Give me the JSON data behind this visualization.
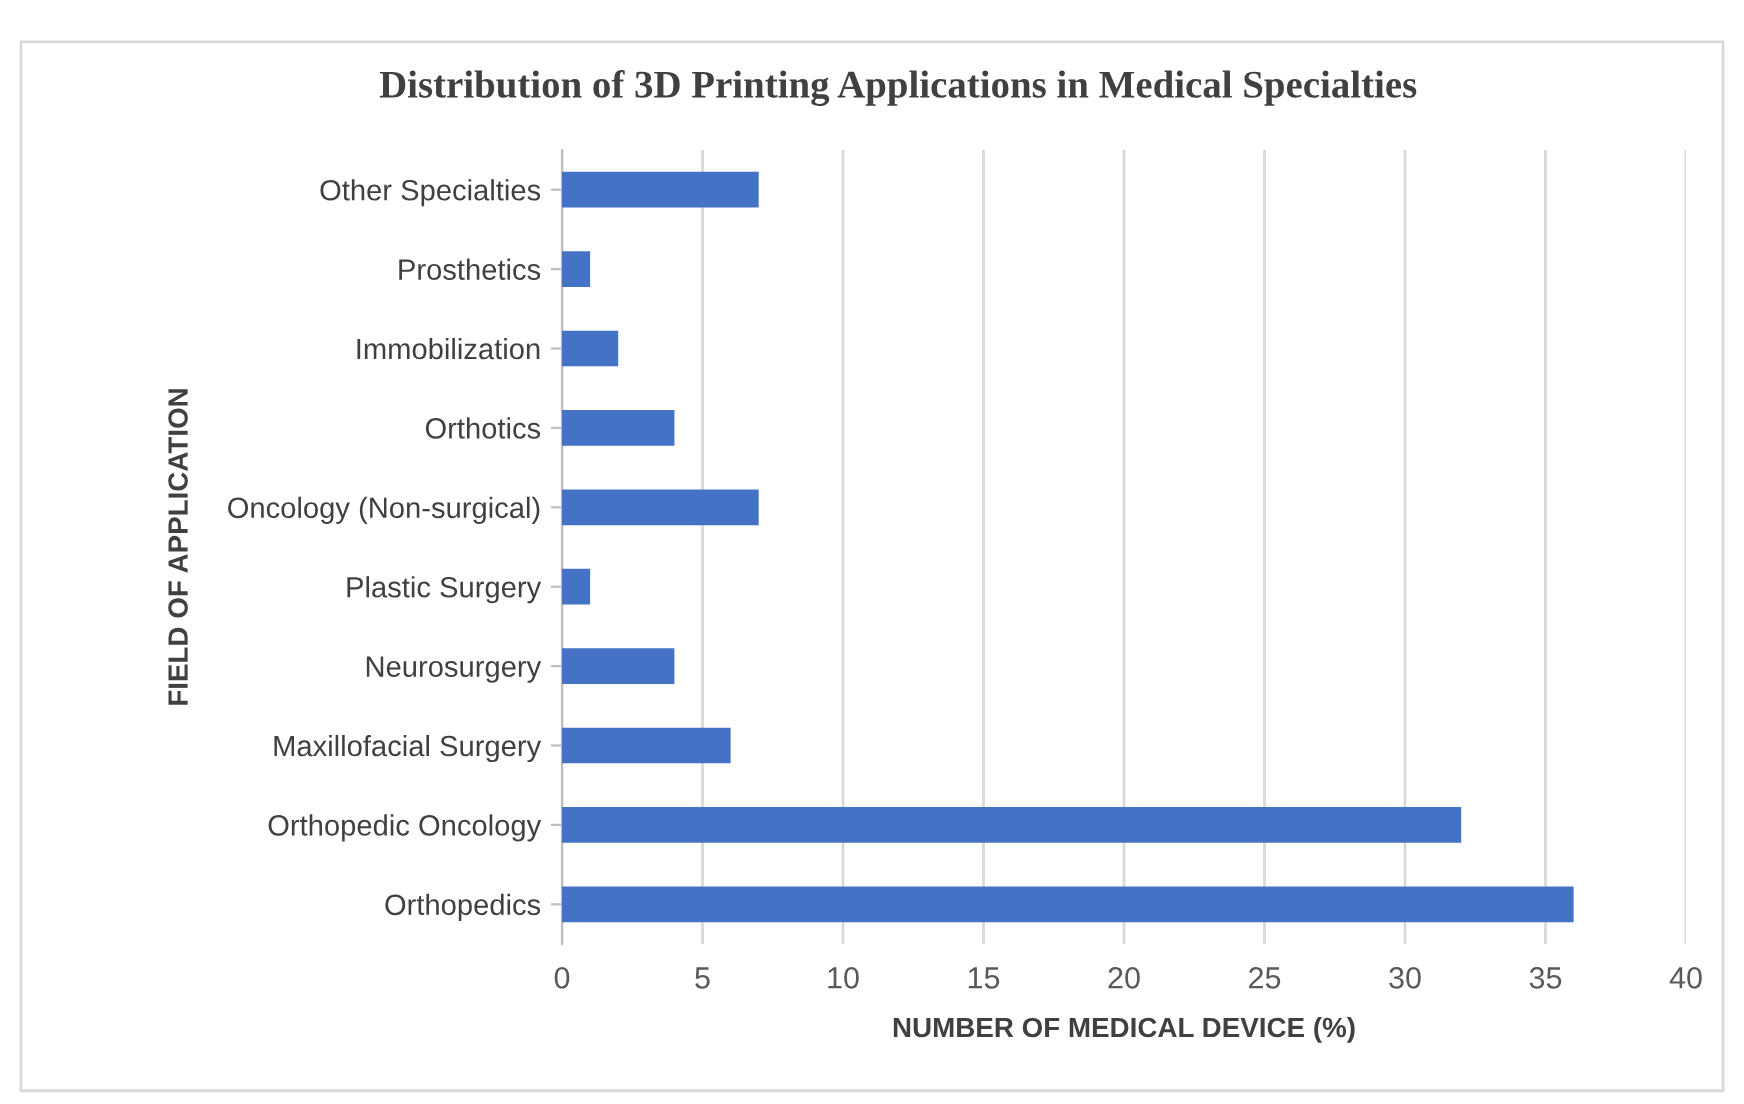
{
  "chart_data": {
    "type": "bar",
    "orientation": "horizontal",
    "title": "Distribution of 3D Printing Applications in Medical Specialties",
    "xlabel": "NUMBER OF MEDICAL DEVICE (%)",
    "ylabel": "FIELD OF APPLICATION",
    "categories": [
      "Other Specialties",
      "Prosthetics",
      "Immobilization",
      "Orthotics",
      "Oncology (Non-surgical)",
      "Plastic Surgery",
      "Neurosurgery",
      "Maxillofacial Surgery",
      "Orthopedic Oncology",
      "Orthopedics"
    ],
    "values": [
      7,
      1,
      2,
      4,
      7,
      1,
      4,
      6,
      32,
      36
    ],
    "color": "#4472c4",
    "xlim": [
      0,
      40
    ],
    "xticks": [
      0,
      5,
      10,
      15,
      20,
      25,
      30,
      35,
      40
    ],
    "grid": "x",
    "legend": false
  }
}
